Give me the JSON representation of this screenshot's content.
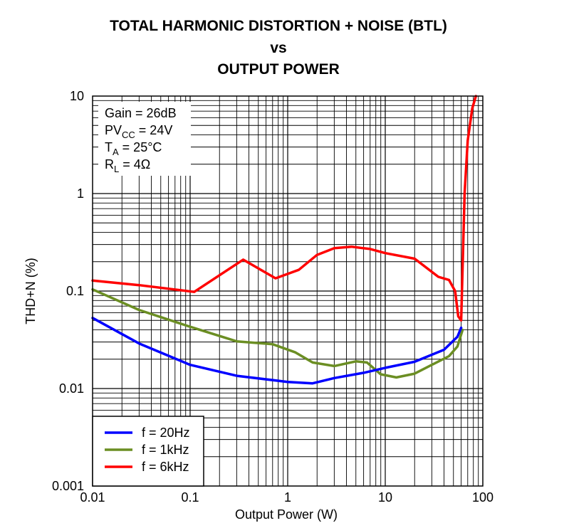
{
  "chart_data": {
    "type": "line",
    "title": [
      "TOTAL HARMONIC DISTORTION + NOISE (BTL)",
      "vs",
      "OUTPUT POWER"
    ],
    "xlabel": "Output Power (W)",
    "ylabel": "THD+N (%)",
    "xscale": "log",
    "yscale": "log",
    "xlim": [
      0.01,
      100
    ],
    "ylim": [
      0.001,
      10
    ],
    "xticks": [
      "0.01",
      "0.1",
      "1",
      "10",
      "100"
    ],
    "yticks": [
      "0.001",
      "0.01",
      "0.1",
      "1",
      "10"
    ],
    "grid": true,
    "conditions": {
      "gain": "Gain = 26dB",
      "pvcc_main": "PV",
      "pvcc_sub": "CC",
      "pvcc_rest": " = 24V",
      "ta_main": "T",
      "ta_sub": "A",
      "ta_rest": " = 25°C",
      "rl_main": "R",
      "rl_sub": "L",
      "rl_rest": " = 4Ω"
    },
    "legend_position": "bottom-left",
    "series": [
      {
        "name": "f = 20Hz",
        "color": "#0000ff",
        "x": [
          0.01,
          0.03,
          0.1,
          0.3,
          1,
          1.8,
          3,
          6,
          10,
          20,
          40,
          55,
          60
        ],
        "y": [
          0.053,
          0.029,
          0.0175,
          0.0135,
          0.0117,
          0.0113,
          0.0128,
          0.0145,
          0.0163,
          0.0188,
          0.025,
          0.034,
          0.042
        ]
      },
      {
        "name": "f = 1kHz",
        "color": "#6b8e23",
        "x": [
          0.01,
          0.03,
          0.1,
          0.3,
          0.7,
          1.2,
          1.8,
          3,
          5,
          6.5,
          9,
          13,
          20,
          30,
          45,
          55,
          62
        ],
        "y": [
          0.104,
          0.064,
          0.043,
          0.0305,
          0.0285,
          0.0235,
          0.0185,
          0.017,
          0.019,
          0.0185,
          0.014,
          0.013,
          0.0142,
          0.0175,
          0.0215,
          0.027,
          0.04
        ]
      },
      {
        "name": "f = 6kHz",
        "color": "#ff0000",
        "x": [
          0.01,
          0.03,
          0.11,
          0.35,
          0.75,
          1.3,
          2.0,
          3.0,
          4.5,
          7,
          10,
          20,
          35,
          45,
          52,
          56,
          60,
          65,
          70,
          78,
          85
        ],
        "y": [
          0.128,
          0.115,
          0.098,
          0.21,
          0.135,
          0.165,
          0.235,
          0.275,
          0.285,
          0.27,
          0.245,
          0.215,
          0.14,
          0.13,
          0.1,
          0.055,
          0.05,
          1.0,
          3.5,
          7.5,
          10
        ]
      }
    ]
  }
}
